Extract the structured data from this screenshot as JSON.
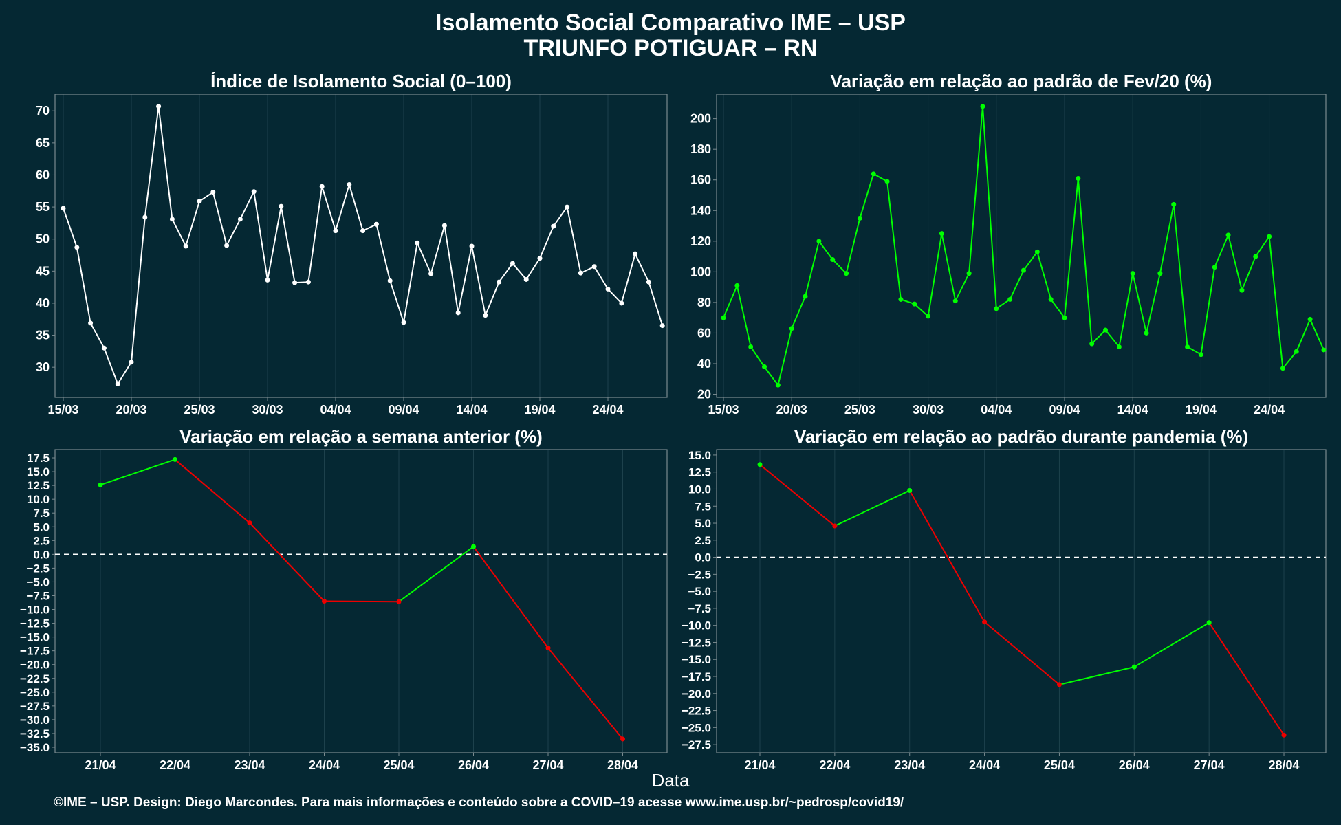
{
  "title_line1": "Isolamento Social Comparativo IME – USP",
  "title_line2": "TRIUNFO POTIGUAR – RN",
  "x_axis_label": "Data",
  "footer": "©IME – USP. Design: Diego Marcondes. Para mais informações e conteúdo sobre a COVID–19 acesse www.ime.usp.br/~pedrosp/covid19/",
  "colors": {
    "background": "#052833",
    "white": "#ffffff",
    "green": "#00ff00",
    "red": "#ee0000",
    "frame": "#7a8a8f",
    "grid": "#1d414c"
  },
  "chart_data": [
    {
      "type": "line",
      "title": "Índice de Isolamento Social (0–100)",
      "color": "#ffffff",
      "x": [
        "15/03",
        "16/03",
        "17/03",
        "18/03",
        "19/03",
        "20/03",
        "21/03",
        "22/03",
        "23/03",
        "24/03",
        "25/03",
        "26/03",
        "27/03",
        "28/03",
        "29/03",
        "30/03",
        "31/03",
        "01/04",
        "02/04",
        "03/04",
        "04/04",
        "05/04",
        "06/04",
        "07/04",
        "08/04",
        "09/04",
        "10/04",
        "11/04",
        "12/04",
        "13/04",
        "14/04",
        "15/04",
        "16/04",
        "17/04",
        "18/04",
        "19/04",
        "20/04",
        "21/04",
        "22/04",
        "23/04",
        "24/04",
        "25/04",
        "26/04",
        "27/04",
        "28/04"
      ],
      "values": [
        54.8,
        48.7,
        36.9,
        33.0,
        27.4,
        30.8,
        53.4,
        70.7,
        53.1,
        48.9,
        55.9,
        57.3,
        49.0,
        53.1,
        57.4,
        43.6,
        55.1,
        43.2,
        43.3,
        58.2,
        51.3,
        58.5,
        51.3,
        52.3,
        43.5,
        37.0,
        49.4,
        44.6,
        52.1,
        38.5,
        48.9,
        38.1,
        43.3,
        46.2,
        43.7,
        47.0,
        52.0,
        55.0,
        44.7,
        45.7,
        42.2,
        40.0,
        47.7,
        43.3,
        36.5
      ],
      "xticks": [
        "15/03",
        "20/03",
        "25/03",
        "30/03",
        "04/04",
        "09/04",
        "14/04",
        "19/04",
        "24/04"
      ],
      "yticks": [
        30,
        35,
        40,
        45,
        50,
        55,
        60,
        65,
        70
      ],
      "ylim": [
        25.3,
        72.6
      ]
    },
    {
      "type": "line",
      "title": "Variação em relação ao padrão de Fev/20 (%)",
      "color": "#00ff00",
      "x": [
        "15/03",
        "16/03",
        "17/03",
        "18/03",
        "19/03",
        "20/03",
        "21/03",
        "22/03",
        "23/03",
        "24/03",
        "25/03",
        "26/03",
        "27/03",
        "28/03",
        "29/03",
        "30/03",
        "31/03",
        "01/04",
        "02/04",
        "03/04",
        "04/04",
        "05/04",
        "06/04",
        "07/04",
        "08/04",
        "09/04",
        "10/04",
        "11/04",
        "12/04",
        "13/04",
        "14/04",
        "15/04",
        "16/04",
        "17/04",
        "18/04",
        "19/04",
        "20/04",
        "21/04",
        "22/04",
        "23/04",
        "24/04",
        "25/04",
        "26/04",
        "27/04",
        "28/04"
      ],
      "values": [
        70,
        91,
        51,
        38,
        26,
        63,
        84,
        120,
        108,
        99,
        135,
        164,
        159,
        82,
        79,
        71,
        125,
        81,
        99,
        208,
        76,
        82,
        101,
        113,
        82,
        70,
        161,
        53,
        62,
        51,
        99,
        60,
        99,
        144,
        51,
        46,
        103,
        124,
        88,
        110,
        123,
        37,
        48,
        69,
        49
      ],
      "xticks": [
        "15/03",
        "20/03",
        "25/03",
        "30/03",
        "04/04",
        "09/04",
        "14/04",
        "19/04",
        "24/04"
      ],
      "yticks": [
        20,
        40,
        60,
        80,
        100,
        120,
        140,
        160,
        180,
        200
      ],
      "ylim": [
        18,
        216
      ]
    },
    {
      "type": "line",
      "title": "Variação em relação a semana anterior (%)",
      "colors": {
        "positive_change": "#00ff00",
        "negative_change": "#ee0000"
      },
      "x": [
        "21/04",
        "22/04",
        "23/04",
        "24/04",
        "25/04",
        "26/04",
        "27/04",
        "28/04"
      ],
      "values": [
        12.6,
        17.2,
        5.7,
        -8.5,
        -8.6,
        1.4,
        -17.0,
        -33.5
      ],
      "xticks": [
        "21/04",
        "22/04",
        "23/04",
        "24/04",
        "25/04",
        "26/04",
        "27/04",
        "28/04"
      ],
      "yticks": [
        -35,
        -32.5,
        -30,
        -27.5,
        -25,
        -22.5,
        -20,
        -17.5,
        -15,
        -12.5,
        -10,
        -7.5,
        -5,
        -2.5,
        0,
        2.5,
        5,
        7.5,
        10,
        12.5,
        15,
        17.5
      ],
      "ylim": [
        -36,
        19
      ],
      "reference_line": 0
    },
    {
      "type": "line",
      "title": "Variação em relação ao padrão durante pandemia (%)",
      "colors": {
        "positive_change": "#00ff00",
        "negative_change": "#ee0000"
      },
      "x": [
        "21/04",
        "22/04",
        "23/04",
        "24/04",
        "25/04",
        "26/04",
        "27/04",
        "28/04"
      ],
      "values": [
        13.6,
        4.6,
        9.8,
        -9.5,
        -18.7,
        -16.1,
        -9.6,
        -26.1
      ],
      "xticks": [
        "21/04",
        "22/04",
        "23/04",
        "24/04",
        "25/04",
        "26/04",
        "27/04",
        "28/04"
      ],
      "yticks": [
        -27.5,
        -25,
        -22.5,
        -20,
        -17.5,
        -15,
        -12.5,
        -10,
        -7.5,
        -5,
        -2.5,
        0,
        2.5,
        5,
        7.5,
        10,
        12.5,
        15
      ],
      "ylim": [
        -28.7,
        15.8
      ],
      "reference_line": 0
    }
  ]
}
